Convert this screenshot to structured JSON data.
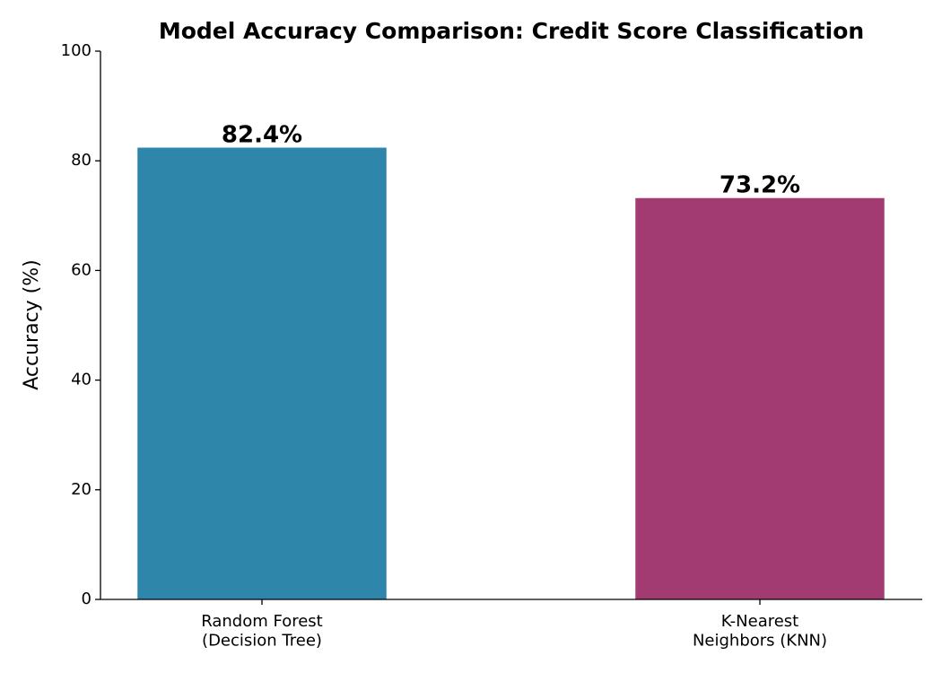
{
  "chart_data": {
    "type": "bar",
    "title": "Model Accuracy Comparison: Credit Score Classification",
    "ylabel": "Accuracy (%)",
    "categories": [
      "Random Forest\n(Decision Tree)",
      "K-Nearest\nNeighbors (KNN)"
    ],
    "values": [
      82.4,
      73.2
    ],
    "value_labels": [
      "82.4%",
      "73.2%"
    ],
    "colors": [
      "#2e86ab",
      "#a23b72"
    ],
    "ylim": [
      0,
      100
    ],
    "yticks": [
      0,
      20,
      40,
      60,
      80,
      100
    ],
    "grid": false
  }
}
